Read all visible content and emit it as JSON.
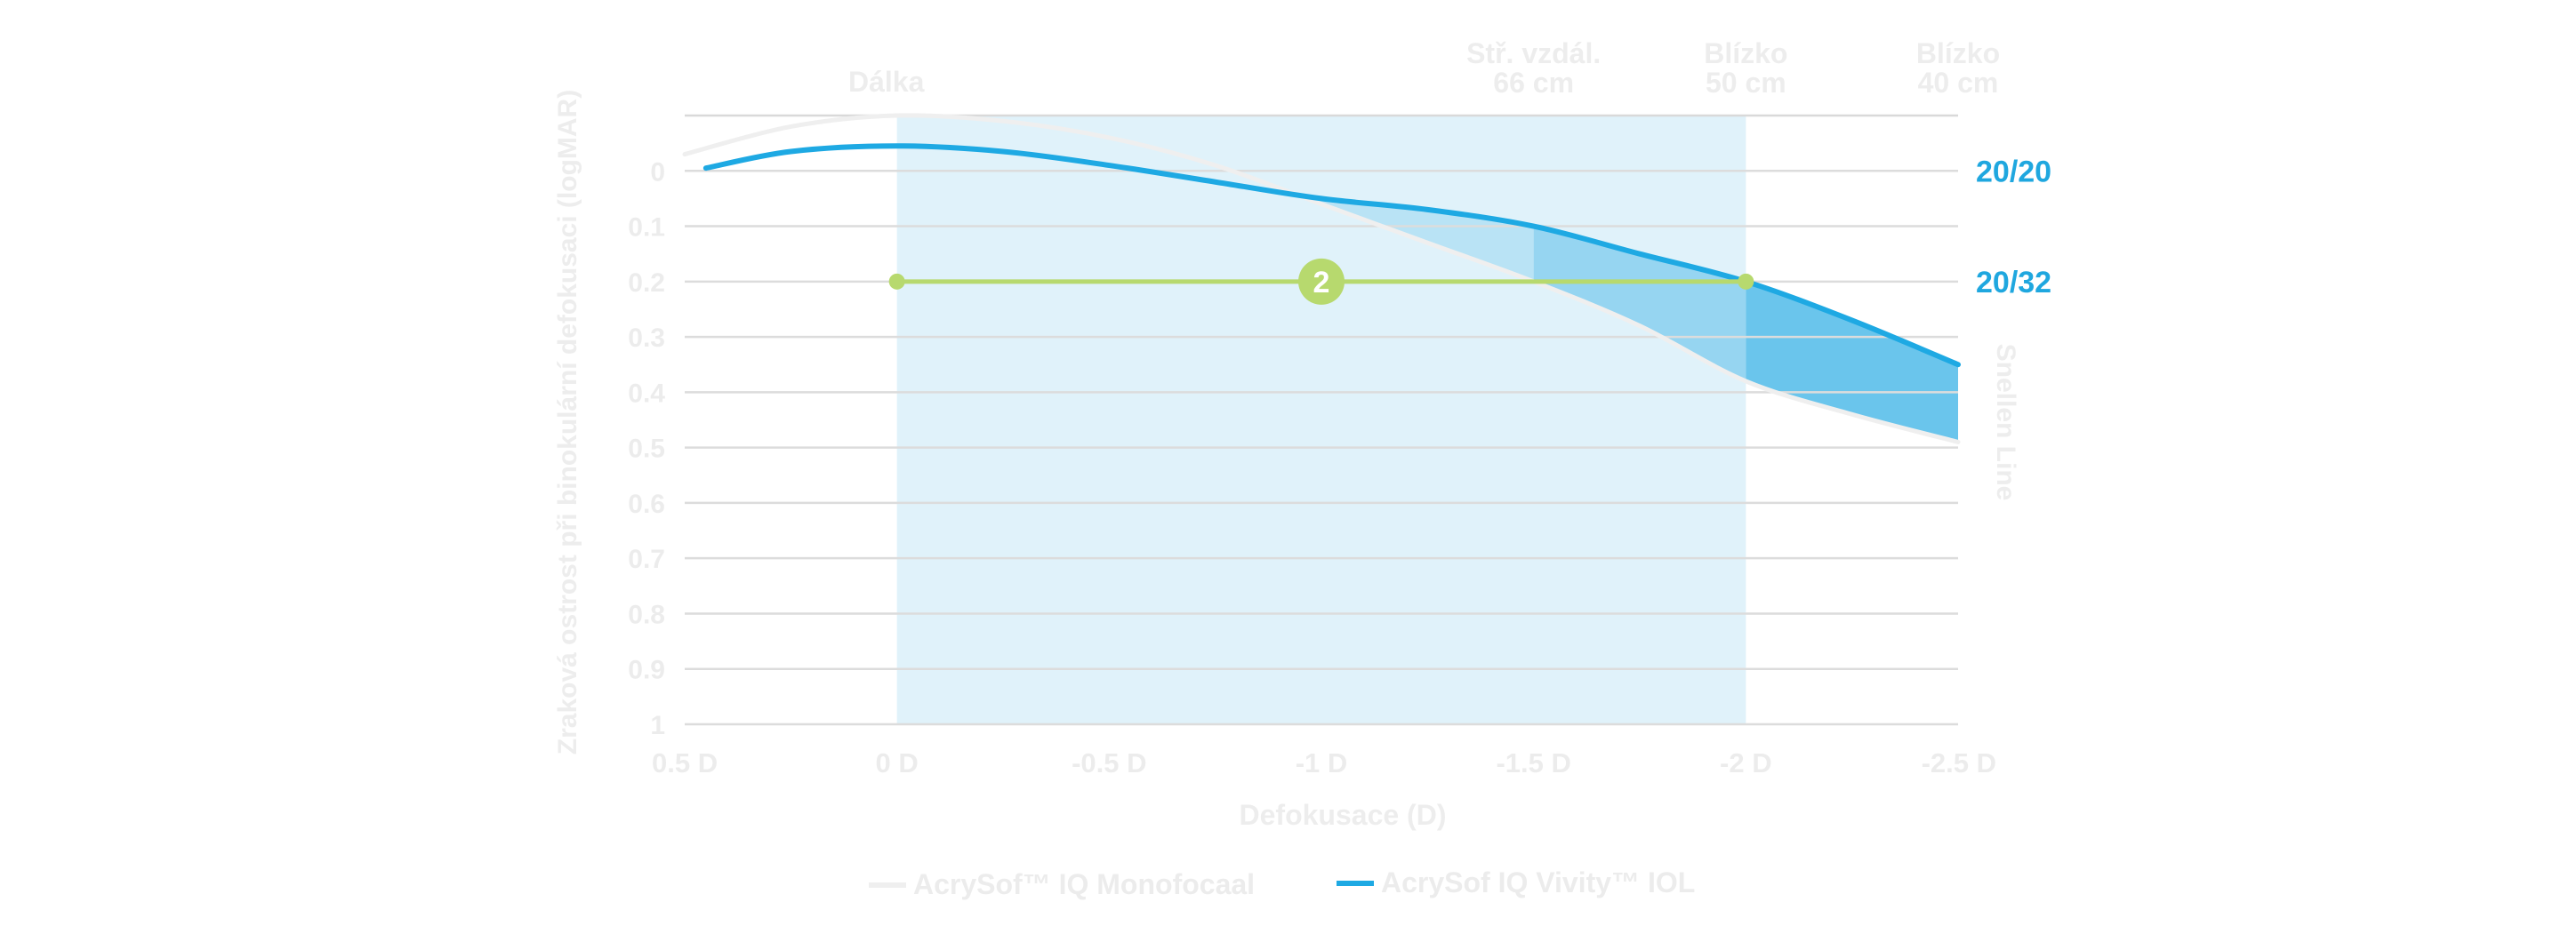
{
  "chart_data": {
    "type": "line",
    "xlabel": "Defokusace (D)",
    "ylabel": "Zraková ostrost při binokulární defokusaci (logMAR)",
    "y2label": "Snellen Line",
    "x_ticks": [
      "0.5 D",
      "0 D",
      "-0.5 D",
      "-1 D",
      "-1.5 D",
      "-2 D",
      "-2.5 D"
    ],
    "y_ticks": [
      "0",
      "0.1",
      "0.2",
      "0.3",
      "0.4",
      "0.5",
      "0.6",
      "0.7",
      "0.8",
      "0.9",
      "1"
    ],
    "xlim": [
      0.5,
      -2.5
    ],
    "ylim": [
      -0.1,
      1
    ],
    "y_inverted": true,
    "top_labels": [
      {
        "lines": [
          "Dálka"
        ],
        "x": 0
      },
      {
        "lines": [
          "Stř. vzdál.",
          "66 cm"
        ],
        "x": -1.5
      },
      {
        "lines": [
          "Blízko",
          "50 cm"
        ],
        "x": -2
      },
      {
        "lines": [
          "Blízko",
          "40 cm"
        ],
        "x": -2.5
      }
    ],
    "snellen_labels": [
      {
        "text": "20/20",
        "y": 0
      },
      {
        "text": "20/32",
        "y": 0.2
      }
    ],
    "shaded_region": {
      "x_from": 0,
      "x_to": -2
    },
    "reference_line": {
      "y": 0.2,
      "x_from": 0,
      "x_to": -2,
      "marker_label": "2",
      "marker_x": -1
    },
    "series": [
      {
        "name": "AcrySof™ IQ Monofocaal",
        "color": "#efefef",
        "x": [
          0.5,
          0.25,
          0,
          -0.25,
          -0.5,
          -0.75,
          -1,
          -1.25,
          -1.5,
          -1.75,
          -2,
          -2.25,
          -2.5
        ],
        "y": [
          -0.03,
          -0.08,
          -0.1,
          -0.09,
          -0.06,
          -0.01,
          0.06,
          0.13,
          0.2,
          0.28,
          0.38,
          0.44,
          0.49
        ]
      },
      {
        "name": "AcrySof IQ Vivity™ IOL",
        "color": "#1ea9e3",
        "x": [
          0.45,
          0.25,
          0,
          -0.25,
          -0.5,
          -0.75,
          -1,
          -1.25,
          -1.5,
          -1.75,
          -2,
          -2.25,
          -2.5
        ],
        "y": [
          -0.005,
          -0.035,
          -0.045,
          -0.035,
          -0.01,
          0.02,
          0.05,
          0.07,
          0.1,
          0.15,
          0.2,
          0.27,
          0.35
        ]
      }
    ],
    "legend": {
      "placement": "bottom-center"
    }
  }
}
